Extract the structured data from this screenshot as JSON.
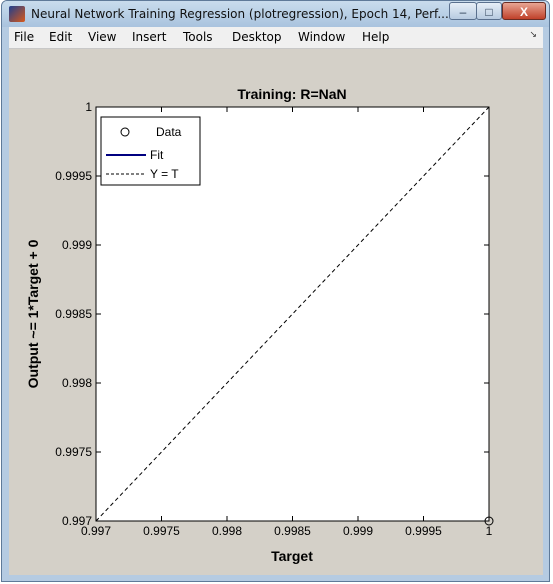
{
  "window": {
    "title": "Neural Network Training Regression (plotregression), Epoch 14, Perf...",
    "min_glyph": "–",
    "max_glyph": "□",
    "close_glyph": "X"
  },
  "menu": {
    "items": [
      "File",
      "Edit",
      "View",
      "Insert",
      "Tools",
      "Desktop",
      "Window",
      "Help"
    ],
    "overflow_glyph": "↘"
  },
  "chart_data": {
    "type": "scatter",
    "title": "Training: R=NaN",
    "xlabel": "Target",
    "ylabel": "Output ~= 1*Target + 0",
    "xlim": [
      0.997,
      1
    ],
    "ylim": [
      0.997,
      1
    ],
    "x_ticks": [
      0.997,
      0.9975,
      0.998,
      0.9985,
      0.999,
      0.9995,
      1
    ],
    "x_tick_labels": [
      "0.997",
      "0.9975",
      "0.998",
      "0.9985",
      "0.999",
      "0.9995",
      "1"
    ],
    "y_ticks": [
      0.997,
      0.9975,
      0.998,
      0.9985,
      0.999,
      0.9995,
      1
    ],
    "y_tick_labels": [
      "0.997",
      "0.9975",
      "0.998",
      "0.9985",
      "0.999",
      "0.9995",
      "1"
    ],
    "grid": false,
    "legend_position": "top-left",
    "legend": [
      "Data",
      "Fit",
      "Y = T"
    ],
    "series": [
      {
        "name": "Data",
        "kind": "markers",
        "x": [
          1
        ],
        "y": [
          0.997
        ]
      },
      {
        "name": "Fit",
        "kind": "line",
        "x": [],
        "y": [],
        "color": "#000080"
      },
      {
        "name": "Y = T",
        "kind": "dashed-line",
        "x": [
          0.997,
          1
        ],
        "y": [
          0.997,
          1
        ]
      }
    ]
  }
}
